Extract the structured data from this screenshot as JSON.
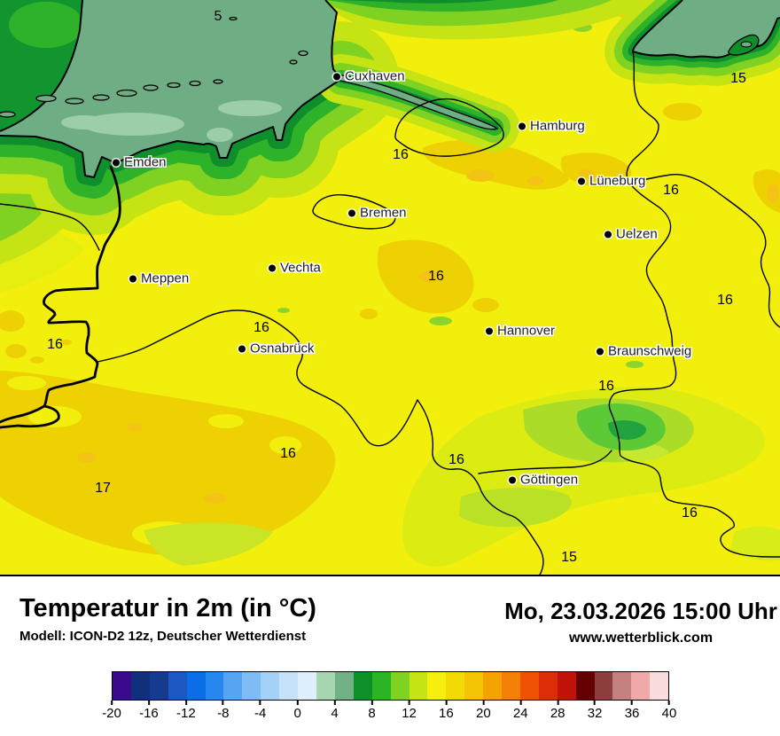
{
  "footer": {
    "title": "Temperatur in 2m (in °C)",
    "model_info": "Modell: ICON-D2 12z, Deutscher Wetterdienst",
    "datetime": "Mo, 23.03.2026 15:00 Uhr",
    "website": "www.wetterblick.com"
  },
  "map": {
    "cities": [
      {
        "name": "Cuxhaven"
      },
      {
        "name": "Hamburg"
      },
      {
        "name": "Emden"
      },
      {
        "name": "Lüneburg"
      },
      {
        "name": "Bremen"
      },
      {
        "name": "Uelzen"
      },
      {
        "name": "Vechta"
      },
      {
        "name": "Meppen"
      },
      {
        "name": "Hannover"
      },
      {
        "name": "Osnabrück"
      },
      {
        "name": "Braunschweig"
      },
      {
        "name": "Göttingen"
      }
    ],
    "temperature_labels": [
      {
        "value": "5"
      },
      {
        "value": "15"
      },
      {
        "value": "16"
      },
      {
        "value": "16"
      },
      {
        "value": "16"
      },
      {
        "value": "16"
      },
      {
        "value": "16"
      },
      {
        "value": "16"
      },
      {
        "value": "16"
      },
      {
        "value": "16"
      },
      {
        "value": "16"
      },
      {
        "value": "17"
      },
      {
        "value": "16"
      },
      {
        "value": "15"
      }
    ],
    "colors": {
      "sea": "#6fae85",
      "land_yellow": "#f3ef0d",
      "land_golden": "#edd103",
      "coast_dark_green": "#0f8f2c"
    }
  },
  "colorbar": {
    "colors": [
      "#3a0a8c",
      "#10307c",
      "#153b8e",
      "#1c57c4",
      "#0c6ee4",
      "#2688ee",
      "#56a5f2",
      "#7fbcf5",
      "#a5d1f8",
      "#c6e1fa",
      "#e0effc",
      "#a6d7b1",
      "#72b185",
      "#0e9128",
      "#2cb326",
      "#7fd122",
      "#c6e414",
      "#f4ef0e",
      "#f2da05",
      "#f3c402",
      "#f5a302",
      "#f58008",
      "#ef5206",
      "#dd2d08",
      "#c01208",
      "#650001",
      "#8c3f3f",
      "#c58080",
      "#f0a8a8",
      "#fadcdc"
    ],
    "ticks": [
      "-20",
      "-16",
      "-12",
      "-8",
      "-4",
      "0",
      "4",
      "8",
      "12",
      "16",
      "20",
      "24",
      "28",
      "32",
      "36",
      "40"
    ]
  }
}
